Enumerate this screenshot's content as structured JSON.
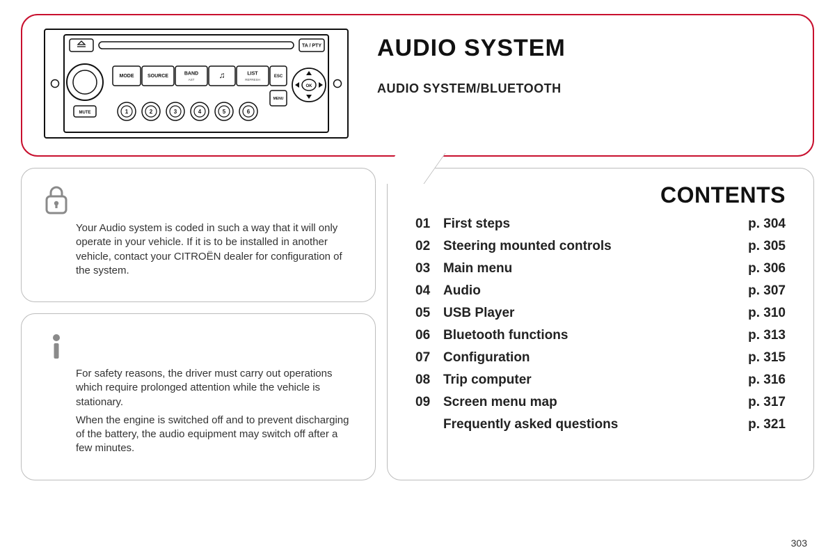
{
  "header": {
    "main_title": "AUDIO SYSTEM",
    "sub_title": "AUDIO SYSTEM/BLUETOOTH"
  },
  "radio": {
    "buttons": {
      "eject": "⏏",
      "ta_pty": "TA / PTY",
      "mode": "MODE",
      "source": "SOURCE",
      "band": "BAND",
      "band_sub": "AST",
      "music": "♫",
      "list": "LIST",
      "list_sub": "REFRESH",
      "esc": "ESC",
      "menu": "MENU",
      "ok": "OK",
      "mute": "MUTE"
    },
    "presets": [
      "1",
      "2",
      "3",
      "4",
      "5",
      "6"
    ]
  },
  "lock_box": {
    "text": "Your Audio system is coded in such a way that it will only operate in your vehicle. If it is to be installed in another vehicle, contact your CITROËN dealer for configuration of the system."
  },
  "warning_box": {
    "p1": "For safety reasons, the driver must carry out operations which require prolonged attention while the vehicle is stationary.",
    "p2": "When the engine is switched off and to prevent discharging of the battery, the audio equipment may switch off after a few minutes."
  },
  "contents": {
    "title": "CONTENTS",
    "items": [
      {
        "num": "01",
        "label": "First steps",
        "page": "p. 304"
      },
      {
        "num": "02",
        "label": "Steering mounted controls",
        "page": "p. 305"
      },
      {
        "num": "03",
        "label": "Main menu",
        "page": "p. 306"
      },
      {
        "num": "04",
        "label": "Audio",
        "page": "p. 307"
      },
      {
        "num": "05",
        "label": "USB Player",
        "page": "p. 310"
      },
      {
        "num": "06",
        "label": "Bluetooth functions",
        "page": "p. 313"
      },
      {
        "num": "07",
        "label": "Configuration",
        "page": "p. 315"
      },
      {
        "num": "08",
        "label": "Trip computer",
        "page": "p. 316"
      },
      {
        "num": "09",
        "label": "Screen menu map",
        "page": "p. 317"
      },
      {
        "num": "",
        "label": "Frequently asked questions",
        "page": "p. 321"
      }
    ]
  },
  "page_number": "303",
  "colors": {
    "accent": "#c8102e",
    "border": "#bcbcbc",
    "text": "#222"
  }
}
